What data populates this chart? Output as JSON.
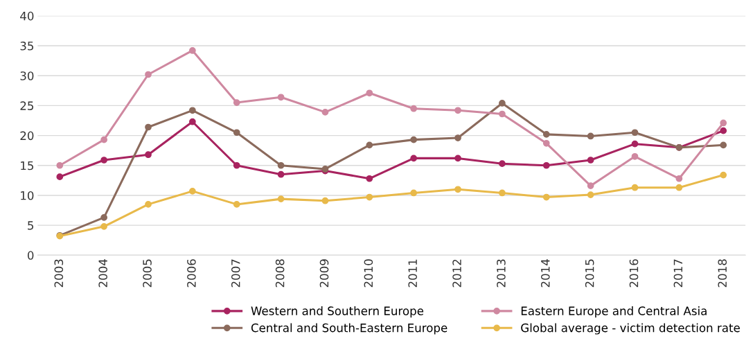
{
  "chart_data": {
    "type": "line",
    "categories": [
      "2003",
      "2004",
      "2005",
      "2006",
      "2007",
      "2008",
      "2009",
      "2010",
      "2011",
      "2012",
      "2013",
      "2014",
      "2015",
      "2016",
      "2017",
      "2018"
    ],
    "series": [
      {
        "name": "Western and Southern Europe",
        "color": "#a8235f",
        "values": [
          13.1,
          15.9,
          16.8,
          22.3,
          15.0,
          13.5,
          14.1,
          12.8,
          16.2,
          16.2,
          15.3,
          15.0,
          15.9,
          18.6,
          18.0,
          20.8
        ]
      },
      {
        "name": "Central and South-Eastern Europe",
        "color": "#8b6a5c",
        "values": [
          3.3,
          6.3,
          21.4,
          24.2,
          20.5,
          15.0,
          14.4,
          18.4,
          19.3,
          19.6,
          25.4,
          20.2,
          19.9,
          20.5,
          18.0,
          18.4
        ]
      },
      {
        "name": "Eastern Europe and Central Asia",
        "color": "#cf88a0",
        "values": [
          15.0,
          19.3,
          30.2,
          34.2,
          25.5,
          26.4,
          23.9,
          27.1,
          24.5,
          24.2,
          23.6,
          18.7,
          11.6,
          16.5,
          12.8,
          22.1
        ]
      },
      {
        "name": "Global average - victim detection rate",
        "color": "#e8b94a",
        "values": [
          3.2,
          4.8,
          8.5,
          10.7,
          8.5,
          9.4,
          9.1,
          9.7,
          10.4,
          11.0,
          10.4,
          9.7,
          10.1,
          11.3,
          11.3,
          13.4
        ]
      }
    ],
    "ylim": [
      0,
      40
    ],
    "yticks": [
      0,
      5,
      10,
      15,
      20,
      25,
      30,
      35,
      40
    ],
    "grid": "y",
    "legend": "bottom",
    "marker": "circle",
    "line_style": "solid"
  }
}
